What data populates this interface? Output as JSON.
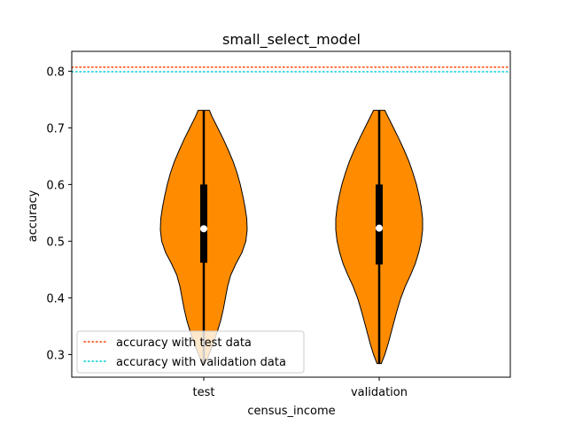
{
  "chart_data": {
    "type": "violin",
    "title": "small_select_model",
    "xlabel": "census_income",
    "ylabel": "accuracy",
    "categories": [
      "test",
      "validation"
    ],
    "ylim": [
      0.26,
      0.835
    ],
    "yticks": [
      "0.3",
      "0.4",
      "0.5",
      "0.6",
      "0.7",
      "0.8"
    ],
    "violin_color": "#ff8c00",
    "violins": [
      {
        "category": "test",
        "min": 0.284,
        "max": 0.731,
        "q1": 0.462,
        "median": 0.522,
        "q3": 0.6,
        "profile": [
          [
            0.284,
            0.04
          ],
          [
            0.3,
            0.12
          ],
          [
            0.32,
            0.22
          ],
          [
            0.34,
            0.31
          ],
          [
            0.36,
            0.39
          ],
          [
            0.38,
            0.45
          ],
          [
            0.4,
            0.5
          ],
          [
            0.42,
            0.55
          ],
          [
            0.44,
            0.62
          ],
          [
            0.46,
            0.74
          ],
          [
            0.48,
            0.88
          ],
          [
            0.5,
            0.97
          ],
          [
            0.52,
            1.0
          ],
          [
            0.54,
            0.99
          ],
          [
            0.56,
            0.95
          ],
          [
            0.58,
            0.9
          ],
          [
            0.6,
            0.84
          ],
          [
            0.62,
            0.77
          ],
          [
            0.64,
            0.68
          ],
          [
            0.66,
            0.57
          ],
          [
            0.68,
            0.45
          ],
          [
            0.7,
            0.32
          ],
          [
            0.72,
            0.19
          ],
          [
            0.731,
            0.13
          ]
        ]
      },
      {
        "category": "validation",
        "min": 0.284,
        "max": 0.731,
        "q1": 0.459,
        "median": 0.523,
        "q3": 0.6,
        "profile": [
          [
            0.284,
            0.05
          ],
          [
            0.3,
            0.13
          ],
          [
            0.32,
            0.21
          ],
          [
            0.34,
            0.28
          ],
          [
            0.36,
            0.35
          ],
          [
            0.38,
            0.42
          ],
          [
            0.4,
            0.5
          ],
          [
            0.42,
            0.6
          ],
          [
            0.44,
            0.72
          ],
          [
            0.46,
            0.83
          ],
          [
            0.48,
            0.91
          ],
          [
            0.5,
            0.97
          ],
          [
            0.52,
            1.0
          ],
          [
            0.54,
            1.0
          ],
          [
            0.56,
            0.97
          ],
          [
            0.58,
            0.92
          ],
          [
            0.6,
            0.86
          ],
          [
            0.62,
            0.78
          ],
          [
            0.64,
            0.69
          ],
          [
            0.66,
            0.58
          ],
          [
            0.68,
            0.46
          ],
          [
            0.7,
            0.33
          ],
          [
            0.72,
            0.2
          ],
          [
            0.731,
            0.13
          ]
        ]
      }
    ],
    "reference_lines": [
      {
        "name": "accuracy with test data",
        "value": 0.807,
        "color": "#ff4500"
      },
      {
        "name": "accuracy with validation data",
        "value": 0.799,
        "color": "#00ced1"
      }
    ],
    "legend_position": "lower-left",
    "grid": false
  }
}
